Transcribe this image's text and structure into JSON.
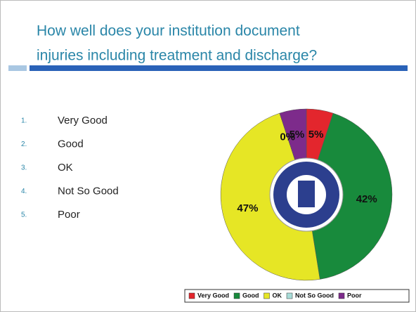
{
  "slide": {
    "title_lines": [
      "How well does your institution document",
      "injuries including treatment and discharge?"
    ],
    "list": [
      {
        "number": "1.",
        "text": "Very Good"
      },
      {
        "number": "2.",
        "text": "Good"
      },
      {
        "number": "3.",
        "text": "OK"
      },
      {
        "number": "4.",
        "text": "Not So Good"
      },
      {
        "number": "5.",
        "text": "Poor"
      }
    ]
  },
  "chart_data": {
    "type": "pie",
    "categories": [
      "Very Good",
      "Good",
      "OK",
      "Not So Good",
      "Poor"
    ],
    "values": [
      5,
      42,
      47,
      0,
      5
    ],
    "value_labels": [
      "5%",
      "42%",
      "47%",
      "0%",
      "5%"
    ],
    "colors": [
      "#e3262d",
      "#188a3c",
      "#e6e625",
      "#a8dcd8",
      "#7d2b8b"
    ],
    "legend": "bottom"
  }
}
